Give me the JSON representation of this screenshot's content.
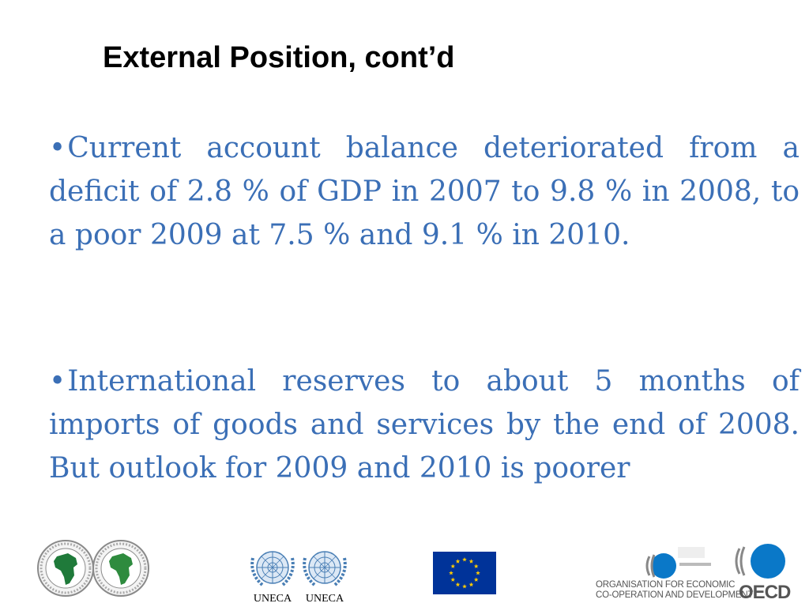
{
  "slide": {
    "title": "External Position, cont’d",
    "bullets": [
      {
        "marker": "•",
        "text": "Current account balance deteriorated from a deficit of 2.8 % of GDP in 2007 to 9.8 % in 2008, to a poor 2009 at 7.5 % and 9.1 % in 2010."
      },
      {
        "marker": "•",
        "text": "International reserves to about 5 months of imports of goods and services by the end of 2008.  But outlook for 2009 and 2010 is poorer"
      }
    ]
  },
  "footer_logos": {
    "afdb_logo": {
      "icon": "african-development-bank-logo"
    },
    "afdf_logo": {
      "icon": "african-development-fund-logo"
    },
    "uneca_logo_1": {
      "label": "UNECA",
      "icon": "un-emblem"
    },
    "uneca_logo_2": {
      "label": "UNECA",
      "icon": "un-emblem"
    },
    "eu_flag": {
      "icon": "european-union-flag",
      "color": "#003399",
      "star_color": "#ffcc00"
    },
    "oecd_logo": {
      "line1": "ORGANISATION FOR ECONOMIC",
      "line2": "CO-OPERATION AND DEVELOPMENT",
      "wordmark": "OECD",
      "icon": "oecd-development-centre-logo"
    }
  },
  "colors": {
    "title": "#000000",
    "body_text": "#3b6fb6",
    "background": "#ffffff"
  }
}
